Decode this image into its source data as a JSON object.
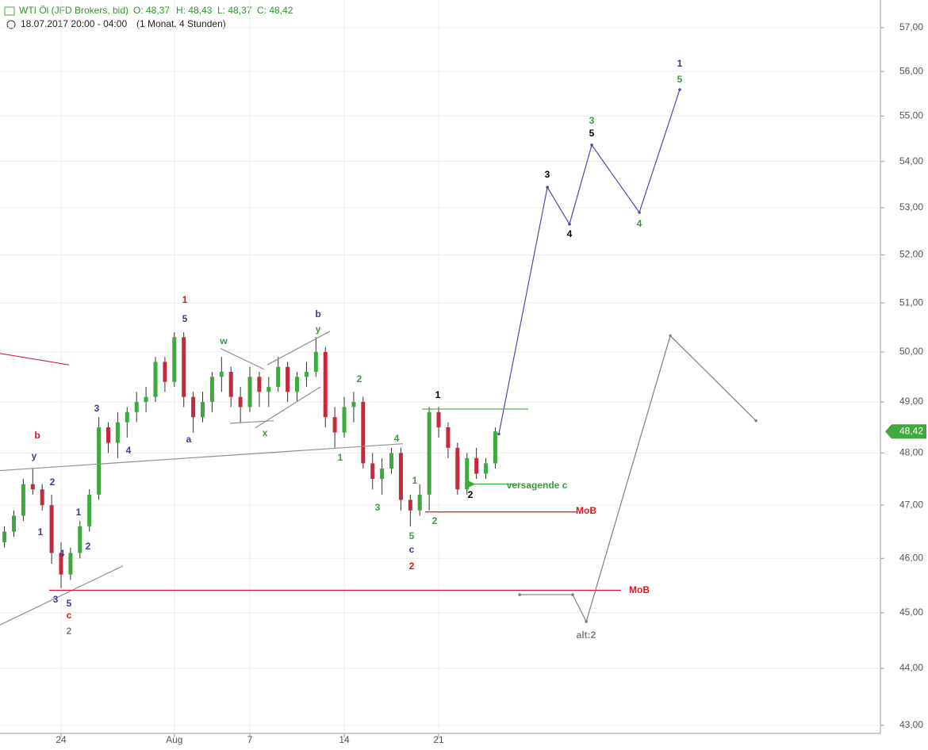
{
  "chart_data": {
    "type": "candlestick",
    "title": "WTI Öl (JFD Brokers, bid)",
    "ohlc_header": [
      "O: 48,37",
      "H: 48,43",
      "L: 48,37",
      "C: 48,42"
    ],
    "subtitle": "18.07.2017 20:00 - 04:00",
    "period": "(1 Monat, 4 Stunden)",
    "x": [
      -3,
      -2.5,
      -2,
      -1.5,
      -1,
      -0.5,
      0,
      0.5,
      1,
      1.5,
      2,
      2.5,
      3,
      3.5,
      4,
      4.5,
      5,
      5.5,
      6,
      6.5,
      7,
      7.5,
      8,
      8.5,
      9,
      9.5,
      10,
      10.5,
      11,
      11.5,
      12,
      12.5,
      13,
      13.5,
      14,
      14.5,
      15,
      15.5,
      16,
      16.5,
      17,
      17.5,
      18,
      18.5,
      19,
      19.5,
      20,
      20.5,
      21,
      21.5,
      22,
      22.5,
      23
    ],
    "open": [
      46.3,
      46.5,
      46.8,
      47.4,
      47.3,
      47.0,
      46.1,
      45.7,
      46.1,
      46.6,
      47.2,
      48.5,
      48.2,
      48.6,
      48.8,
      49.0,
      49.1,
      49.8,
      49.4,
      50.3,
      49.1,
      48.7,
      49.0,
      49.5,
      49.6,
      49.1,
      48.9,
      49.5,
      49.2,
      49.3,
      49.7,
      49.2,
      49.5,
      49.6,
      50.0,
      48.7,
      48.4,
      48.9,
      49.0,
      47.8,
      47.5,
      47.7,
      48.0,
      47.1,
      46.9,
      47.2,
      48.8,
      48.5,
      48.1,
      47.3,
      47.9,
      47.6,
      47.8
    ],
    "high": [
      46.6,
      46.9,
      47.5,
      47.7,
      47.4,
      47.2,
      46.3,
      46.2,
      46.7,
      47.3,
      48.7,
      48.6,
      48.8,
      48.9,
      49.2,
      49.3,
      49.9,
      49.9,
      50.4,
      50.4,
      49.2,
      49.2,
      49.6,
      49.9,
      49.7,
      49.3,
      49.7,
      49.6,
      49.5,
      49.9,
      49.8,
      49.6,
      49.8,
      50.3,
      50.1,
      48.9,
      49.1,
      49.2,
      49.1,
      48.0,
      47.9,
      48.1,
      48.1,
      47.2,
      47.4,
      48.9,
      48.9,
      48.6,
      48.2,
      48.0,
      48.1,
      47.9,
      48.5
    ],
    "low": [
      46.2,
      46.4,
      46.7,
      47.2,
      46.9,
      45.9,
      45.45,
      45.6,
      46.0,
      46.5,
      47.1,
      48.0,
      47.9,
      48.3,
      48.6,
      48.8,
      49.0,
      49.2,
      49.3,
      48.9,
      48.4,
      48.6,
      48.8,
      49.2,
      48.9,
      48.6,
      48.8,
      48.9,
      48.9,
      49.2,
      49.0,
      49.0,
      49.3,
      49.5,
      48.5,
      48.1,
      48.3,
      48.6,
      47.7,
      47.3,
      47.2,
      47.6,
      46.9,
      46.6,
      46.8,
      46.9,
      48.3,
      47.9,
      47.2,
      47.2,
      47.5,
      47.5,
      47.7
    ],
    "close": [
      46.5,
      46.8,
      47.4,
      47.3,
      47.0,
      46.1,
      45.7,
      46.1,
      46.6,
      47.2,
      48.5,
      48.2,
      48.6,
      48.8,
      49.0,
      49.1,
      49.8,
      49.4,
      50.3,
      49.1,
      48.7,
      49.0,
      49.5,
      49.6,
      49.1,
      48.9,
      49.5,
      49.2,
      49.3,
      49.7,
      49.2,
      49.5,
      49.6,
      50.0,
      48.7,
      48.4,
      48.9,
      49.0,
      47.8,
      47.5,
      47.7,
      48.0,
      47.1,
      46.9,
      47.2,
      48.8,
      48.5,
      48.1,
      47.3,
      47.9,
      47.6,
      47.8,
      48.42
    ],
    "up_color": "#3caa3c",
    "down_color": "#c8283c",
    "xlim": [
      -3.235,
      43.4
    ],
    "xticks": [
      {
        "value": 0,
        "label": "24"
      },
      {
        "value": 6,
        "label": "Aug"
      },
      {
        "value": 10,
        "label": "7"
      },
      {
        "value": 15,
        "label": "14"
      },
      {
        "value": 20,
        "label": "21"
      }
    ],
    "ylim": [
      42.86,
      57.64
    ],
    "log_scale": true,
    "grid": true,
    "yticks": [
      {
        "value": 43,
        "label": "43,00"
      },
      {
        "value": 44,
        "label": "44,00"
      },
      {
        "value": 45,
        "label": "45,00"
      },
      {
        "value": 46,
        "label": "46,00"
      },
      {
        "value": 47,
        "label": "47,00"
      },
      {
        "value": 48,
        "label": "48,00"
      },
      {
        "value": 49,
        "label": "49,00"
      },
      {
        "value": 50,
        "label": "50,00"
      },
      {
        "value": 51,
        "label": "51,00"
      },
      {
        "value": 52,
        "label": "52,00"
      },
      {
        "value": 53,
        "label": "53,00"
      },
      {
        "value": 54,
        "label": "54,00"
      },
      {
        "value": 55,
        "label": "55,00"
      },
      {
        "value": 56,
        "label": "56,00"
      },
      {
        "value": 57,
        "label": "57,00"
      }
    ],
    "last_price": {
      "value": 48.42,
      "label": "48,42"
    },
    "lines": [
      {
        "color": "#4a4ab0",
        "x": [
          23.19,
          25.76,
          26.93,
          28.11,
          30.63,
          32.77
        ],
        "y": [
          48.37,
          53.44,
          52.65,
          54.36,
          52.9,
          55.59
        ]
      },
      {
        "color": "#808080",
        "x": [
          24.29,
          27.1,
          27.82,
          32.27,
          36.81
        ],
        "y": [
          45.33,
          45.33,
          44.84,
          50.33,
          48.63
        ]
      },
      {
        "color": "#c8283c",
        "x": [
          -3.235,
          0.42
        ],
        "y": [
          49.97,
          49.74
        ]
      },
      {
        "color": "#909090",
        "x": [
          -3.235,
          18.11
        ],
        "y": [
          47.66,
          48.18
        ]
      },
      {
        "color": "#909090",
        "x": [
          -3.235,
          3.28
        ],
        "y": [
          44.78,
          45.86
        ]
      },
      {
        "color": "#909090",
        "x": [
          8.45,
          10.76
        ],
        "y": [
          50.07,
          49.65
        ]
      },
      {
        "color": "#909090",
        "x": [
          8.95,
          11.26
        ],
        "y": [
          48.58,
          48.63
        ]
      },
      {
        "color": "#909090",
        "x": [
          10.92,
          14.24
        ],
        "y": [
          49.74,
          50.42
        ]
      },
      {
        "color": "#909090",
        "x": [
          10.29,
          13.74
        ],
        "y": [
          48.49,
          49.3
        ]
      },
      {
        "color": "#3caa3c",
        "x": [
          19.12,
          24.75
        ],
        "y": [
          48.86,
          48.86
        ]
      },
      {
        "color": "#e0141e",
        "x": [
          19.29,
          27.31
        ],
        "y": [
          46.87,
          46.87
        ]
      },
      {
        "color": "#e0141e",
        "x": [
          -0.63,
          29.66
        ],
        "y": [
          45.41,
          45.41
        ]
      },
      {
        "color": "#3caa3c",
        "x": [
          24.16,
          21.89
        ],
        "y": [
          47.4,
          47.4
        ],
        "arrow": true
      }
    ],
    "annotations": [
      {
        "text": "b",
        "color": "#e0141e"
      },
      {
        "text": "y",
        "color": "#3a3a9a"
      },
      {
        "text": "2",
        "color": "#3a3a9a"
      },
      {
        "text": "1",
        "color": "#3a3a9a"
      },
      {
        "text": "4",
        "color": "#3a3a9a"
      },
      {
        "text": "3",
        "color": "#3a3a9a"
      },
      {
        "text": "5",
        "color": "#3a3a9a"
      },
      {
        "text": "c",
        "color": "#e0141e"
      },
      {
        "text": "2",
        "color": "#808080"
      },
      {
        "text": "1",
        "color": "#3a3a9a"
      },
      {
        "text": "2",
        "color": "#3a3a9a"
      },
      {
        "text": "3",
        "color": "#3a3a9a"
      },
      {
        "text": "4",
        "color": "#3a3a9a"
      },
      {
        "text": "1",
        "color": "#e0141e"
      },
      {
        "text": "5",
        "color": "#3a3a9a"
      },
      {
        "text": "a",
        "color": "#3a3a9a"
      },
      {
        "text": "w",
        "color": "#3a9a3a"
      },
      {
        "text": "x",
        "color": "#3a9a3a"
      },
      {
        "text": "b",
        "color": "#3a3a9a"
      },
      {
        "text": "y",
        "color": "#3a9a3a"
      },
      {
        "text": "2",
        "color": "#3a9a3a"
      },
      {
        "text": "1",
        "color": "#3a9a3a"
      },
      {
        "text": "4",
        "color": "#3a9a3a"
      },
      {
        "text": "3",
        "color": "#3a9a3a"
      },
      {
        "text": "5",
        "color": "#3a9a3a"
      },
      {
        "text": "c",
        "color": "#3a3a9a"
      },
      {
        "text": "2",
        "color": "#e0141e"
      },
      {
        "text": "1",
        "color": "#3a9a3a"
      },
      {
        "text": "2",
        "color": "#3a9a3a"
      },
      {
        "text": "1",
        "color": "#000000"
      },
      {
        "text": "2",
        "color": "#000000"
      },
      {
        "text": "versagende c",
        "color": "#3a9a3a"
      },
      {
        "text": "MoB",
        "color": "#e0141e"
      },
      {
        "text": "MoB",
        "color": "#e0141e"
      },
      {
        "text": "alt:2",
        "color": "#808080"
      },
      {
        "text": "3",
        "color": "#000000"
      },
      {
        "text": "4",
        "color": "#000000"
      },
      {
        "text": "3",
        "color": "#3a9a3a"
      },
      {
        "text": "5",
        "color": "#000000"
      },
      {
        "text": "4",
        "color": "#3a9a3a"
      },
      {
        "text": "1",
        "color": "#3a3a9a"
      },
      {
        "text": "5",
        "color": "#3a9a3a"
      }
    ]
  }
}
